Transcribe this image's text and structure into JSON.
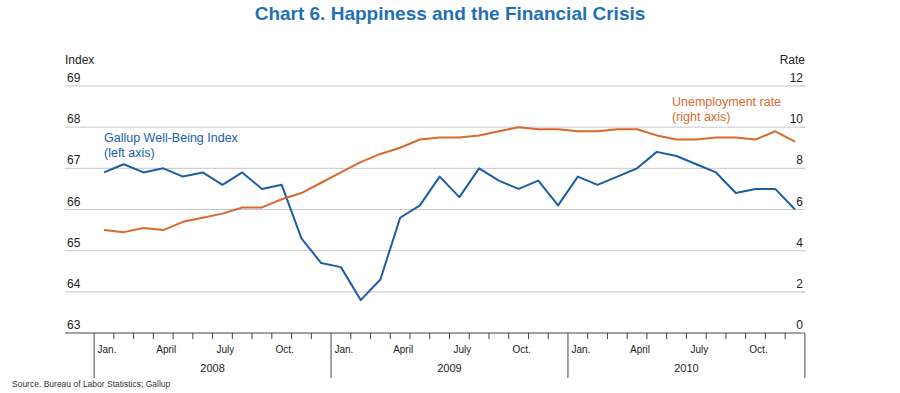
{
  "chart_data": {
    "type": "line",
    "title": "Chart 6. Happiness and the Financial Crisis",
    "y_label": "Index",
    "y2_label": "Rate",
    "source": "Source. Bureau of Labor Statistics; Gallup",
    "categories": [
      "Jan.",
      null,
      null,
      "April",
      null,
      null,
      "July",
      null,
      null,
      "Oct.",
      null,
      null,
      "Jan.",
      null,
      null,
      "April",
      null,
      null,
      "July",
      null,
      null,
      "Oct.",
      null,
      null,
      "Jan.",
      null,
      null,
      "April",
      null,
      null,
      "July",
      null,
      null,
      "Oct.",
      null,
      null
    ],
    "x_groups": [
      "2008",
      "2009",
      "2010"
    ],
    "ylim": [
      63,
      69
    ],
    "yticks": [
      63,
      64,
      65,
      66,
      67,
      68,
      69
    ],
    "y2lim": [
      0,
      12
    ],
    "y2ticks": [
      0,
      2,
      4,
      6,
      8,
      10,
      12
    ],
    "grid": true,
    "series": [
      {
        "name": "Gallup Well-Being Index",
        "annotation": "(left axis)",
        "color": "#1b5ea3",
        "values": [
          66.9,
          67.1,
          66.9,
          67.0,
          66.8,
          66.9,
          66.6,
          66.9,
          66.5,
          66.6,
          65.3,
          64.7,
          64.6,
          63.8,
          64.3,
          65.8,
          66.1,
          66.8,
          66.3,
          67.0,
          66.7,
          66.5,
          66.7,
          66.1,
          66.8,
          66.6,
          66.8,
          67.0,
          67.4,
          67.3,
          67.1,
          66.9,
          66.4,
          66.5,
          66.5,
          66.0
        ]
      },
      {
        "name": "Unemployment rate",
        "annotation": "(right axis)",
        "color": "#d9692c",
        "axis": "y2",
        "values": [
          5.0,
          4.9,
          5.1,
          5.0,
          5.4,
          5.6,
          5.8,
          6.1,
          6.1,
          6.5,
          6.8,
          7.3,
          7.8,
          8.3,
          8.7,
          9.0,
          9.4,
          9.5,
          9.5,
          9.6,
          9.8,
          10.0,
          9.9,
          9.9,
          9.8,
          9.8,
          9.9,
          9.9,
          9.6,
          9.4,
          9.4,
          9.5,
          9.5,
          9.4,
          9.8,
          9.3
        ]
      }
    ]
  }
}
